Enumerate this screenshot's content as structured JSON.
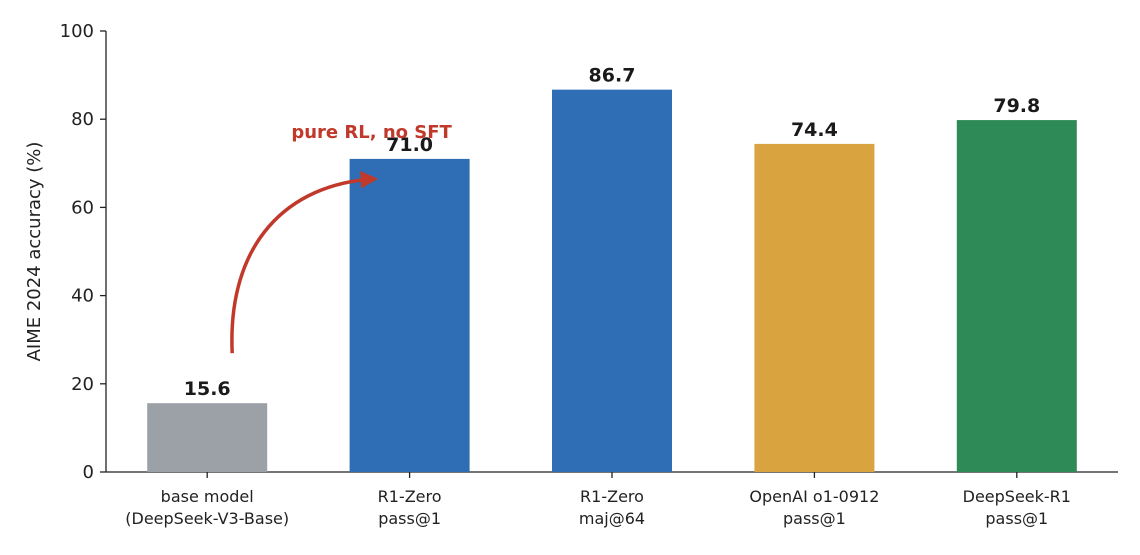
{
  "chart_data": {
    "type": "bar",
    "ylabel": "AIME 2024 accuracy (%)",
    "ylim": [
      0,
      100
    ],
    "yticks": [
      0,
      20,
      40,
      60,
      80,
      100
    ],
    "grid": false,
    "categories": [
      [
        "base model",
        "(DeepSeek-V3-Base)"
      ],
      [
        "R1-Zero",
        "pass@1"
      ],
      [
        "R1-Zero",
        "maj@64"
      ],
      [
        "OpenAI o1-0912",
        "pass@1"
      ],
      [
        "DeepSeek-R1",
        "pass@1"
      ]
    ],
    "values": [
      15.6,
      71.0,
      86.7,
      74.4,
      79.8
    ],
    "value_labels": [
      "15.6",
      "71.0",
      "86.7",
      "74.4",
      "79.8"
    ],
    "bar_colors": [
      "#9ca1a8",
      "#2f6eb5",
      "#2f6eb5",
      "#d9a440",
      "#2e8b57"
    ],
    "annotation": {
      "text": "pure RL, no SFT",
      "color": "#c0392b",
      "from_category": 0,
      "to_category": 1
    }
  }
}
